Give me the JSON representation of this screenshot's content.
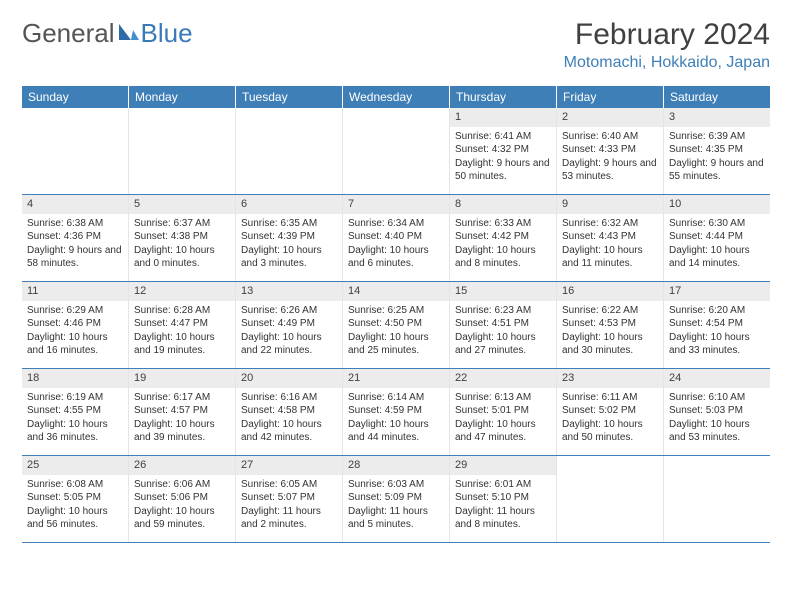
{
  "brand": {
    "part1": "General",
    "part2": "Blue"
  },
  "title": "February 2024",
  "location": "Motomachi, Hokkaido, Japan",
  "colors": {
    "header_bg": "#3f7fb7",
    "daynum_bg": "#ececec",
    "text": "#333333"
  },
  "day_names": [
    "Sunday",
    "Monday",
    "Tuesday",
    "Wednesday",
    "Thursday",
    "Friday",
    "Saturday"
  ],
  "weeks": [
    [
      {
        "empty": true
      },
      {
        "empty": true
      },
      {
        "empty": true
      },
      {
        "empty": true
      },
      {
        "n": "1",
        "sr": "Sunrise: 6:41 AM",
        "ss": "Sunset: 4:32 PM",
        "dl": "Daylight: 9 hours and 50 minutes."
      },
      {
        "n": "2",
        "sr": "Sunrise: 6:40 AM",
        "ss": "Sunset: 4:33 PM",
        "dl": "Daylight: 9 hours and 53 minutes."
      },
      {
        "n": "3",
        "sr": "Sunrise: 6:39 AM",
        "ss": "Sunset: 4:35 PM",
        "dl": "Daylight: 9 hours and 55 minutes."
      }
    ],
    [
      {
        "n": "4",
        "sr": "Sunrise: 6:38 AM",
        "ss": "Sunset: 4:36 PM",
        "dl": "Daylight: 9 hours and 58 minutes."
      },
      {
        "n": "5",
        "sr": "Sunrise: 6:37 AM",
        "ss": "Sunset: 4:38 PM",
        "dl": "Daylight: 10 hours and 0 minutes."
      },
      {
        "n": "6",
        "sr": "Sunrise: 6:35 AM",
        "ss": "Sunset: 4:39 PM",
        "dl": "Daylight: 10 hours and 3 minutes."
      },
      {
        "n": "7",
        "sr": "Sunrise: 6:34 AM",
        "ss": "Sunset: 4:40 PM",
        "dl": "Daylight: 10 hours and 6 minutes."
      },
      {
        "n": "8",
        "sr": "Sunrise: 6:33 AM",
        "ss": "Sunset: 4:42 PM",
        "dl": "Daylight: 10 hours and 8 minutes."
      },
      {
        "n": "9",
        "sr": "Sunrise: 6:32 AM",
        "ss": "Sunset: 4:43 PM",
        "dl": "Daylight: 10 hours and 11 minutes."
      },
      {
        "n": "10",
        "sr": "Sunrise: 6:30 AM",
        "ss": "Sunset: 4:44 PM",
        "dl": "Daylight: 10 hours and 14 minutes."
      }
    ],
    [
      {
        "n": "11",
        "sr": "Sunrise: 6:29 AM",
        "ss": "Sunset: 4:46 PM",
        "dl": "Daylight: 10 hours and 16 minutes."
      },
      {
        "n": "12",
        "sr": "Sunrise: 6:28 AM",
        "ss": "Sunset: 4:47 PM",
        "dl": "Daylight: 10 hours and 19 minutes."
      },
      {
        "n": "13",
        "sr": "Sunrise: 6:26 AM",
        "ss": "Sunset: 4:49 PM",
        "dl": "Daylight: 10 hours and 22 minutes."
      },
      {
        "n": "14",
        "sr": "Sunrise: 6:25 AM",
        "ss": "Sunset: 4:50 PM",
        "dl": "Daylight: 10 hours and 25 minutes."
      },
      {
        "n": "15",
        "sr": "Sunrise: 6:23 AM",
        "ss": "Sunset: 4:51 PM",
        "dl": "Daylight: 10 hours and 27 minutes."
      },
      {
        "n": "16",
        "sr": "Sunrise: 6:22 AM",
        "ss": "Sunset: 4:53 PM",
        "dl": "Daylight: 10 hours and 30 minutes."
      },
      {
        "n": "17",
        "sr": "Sunrise: 6:20 AM",
        "ss": "Sunset: 4:54 PM",
        "dl": "Daylight: 10 hours and 33 minutes."
      }
    ],
    [
      {
        "n": "18",
        "sr": "Sunrise: 6:19 AM",
        "ss": "Sunset: 4:55 PM",
        "dl": "Daylight: 10 hours and 36 minutes."
      },
      {
        "n": "19",
        "sr": "Sunrise: 6:17 AM",
        "ss": "Sunset: 4:57 PM",
        "dl": "Daylight: 10 hours and 39 minutes."
      },
      {
        "n": "20",
        "sr": "Sunrise: 6:16 AM",
        "ss": "Sunset: 4:58 PM",
        "dl": "Daylight: 10 hours and 42 minutes."
      },
      {
        "n": "21",
        "sr": "Sunrise: 6:14 AM",
        "ss": "Sunset: 4:59 PM",
        "dl": "Daylight: 10 hours and 44 minutes."
      },
      {
        "n": "22",
        "sr": "Sunrise: 6:13 AM",
        "ss": "Sunset: 5:01 PM",
        "dl": "Daylight: 10 hours and 47 minutes."
      },
      {
        "n": "23",
        "sr": "Sunrise: 6:11 AM",
        "ss": "Sunset: 5:02 PM",
        "dl": "Daylight: 10 hours and 50 minutes."
      },
      {
        "n": "24",
        "sr": "Sunrise: 6:10 AM",
        "ss": "Sunset: 5:03 PM",
        "dl": "Daylight: 10 hours and 53 minutes."
      }
    ],
    [
      {
        "n": "25",
        "sr": "Sunrise: 6:08 AM",
        "ss": "Sunset: 5:05 PM",
        "dl": "Daylight: 10 hours and 56 minutes."
      },
      {
        "n": "26",
        "sr": "Sunrise: 6:06 AM",
        "ss": "Sunset: 5:06 PM",
        "dl": "Daylight: 10 hours and 59 minutes."
      },
      {
        "n": "27",
        "sr": "Sunrise: 6:05 AM",
        "ss": "Sunset: 5:07 PM",
        "dl": "Daylight: 11 hours and 2 minutes."
      },
      {
        "n": "28",
        "sr": "Sunrise: 6:03 AM",
        "ss": "Sunset: 5:09 PM",
        "dl": "Daylight: 11 hours and 5 minutes."
      },
      {
        "n": "29",
        "sr": "Sunrise: 6:01 AM",
        "ss": "Sunset: 5:10 PM",
        "dl": "Daylight: 11 hours and 8 minutes."
      },
      {
        "empty": true
      },
      {
        "empty": true
      }
    ]
  ]
}
